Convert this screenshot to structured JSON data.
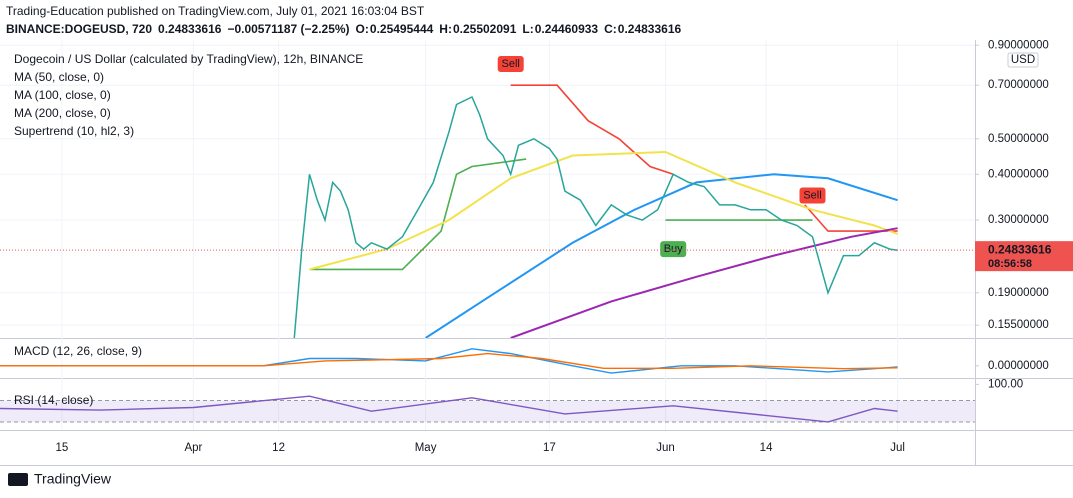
{
  "header": {
    "publisher": "Trading-Education published on TradingView.com, July 01, 2021 16:03:04 BST",
    "symbol": "BINANCE:DOGEUSD, 720",
    "last": 0.24833616,
    "change": "−0.00571187 (−2.25%)",
    "ohlc": [
      {
        "label": "O:",
        "value": 0.25495444
      },
      {
        "label": "H:",
        "value": 0.25502091
      },
      {
        "label": "L:",
        "value": 0.24460933
      },
      {
        "label": "C:",
        "value": 0.24833616
      }
    ]
  },
  "footer": "TradingView",
  "chart_data": [
    {
      "type": "line",
      "title": "Dogecoin / US Dollar (calculated by TradingView), 12h, BINANCE",
      "unit": "USD",
      "log_scale": true,
      "grid": true,
      "xlim": [
        "2021-03-07",
        "2021-07-11"
      ],
      "xticks": [
        {
          "value": "2021-03-15",
          "label": "15"
        },
        {
          "value": "2021-04-01",
          "label": "Apr"
        },
        {
          "value": "2021-04-12",
          "label": "12"
        },
        {
          "value": "2021-05-01",
          "label": "May"
        },
        {
          "value": "2021-05-17",
          "label": "17"
        },
        {
          "value": "2021-06-01",
          "label": "Jun"
        },
        {
          "value": "2021-06-14",
          "label": "14"
        },
        {
          "value": "2021-07-01",
          "label": "Jul"
        }
      ],
      "ylim": [
        0.143,
        0.93
      ],
      "yticks": [
        {
          "value": 0.9,
          "label": "0.90000000"
        },
        {
          "value": 0.7,
          "label": "0.70000000"
        },
        {
          "value": 0.5,
          "label": "0.50000000"
        },
        {
          "value": 0.4,
          "label": "0.40000000"
        },
        {
          "value": 0.3,
          "label": "0.30000000"
        },
        {
          "value": 0.19,
          "label": "0.19000000"
        },
        {
          "value": 0.155,
          "label": "0.15500000"
        }
      ],
      "price": {
        "color": "#26a69a",
        "x": [
          "2021-04-14",
          "2021-04-15",
          "2021-04-16",
          "2021-04-17",
          "2021-04-18",
          "2021-04-19",
          "2021-04-20",
          "2021-04-21",
          "2021-04-22",
          "2021-04-23",
          "2021-04-24",
          "2021-04-26",
          "2021-04-28",
          "2021-04-30",
          "2021-05-02",
          "2021-05-04",
          "2021-05-05",
          "2021-05-07",
          "2021-05-08",
          "2021-05-09",
          "2021-05-11",
          "2021-05-12",
          "2021-05-13",
          "2021-05-15",
          "2021-05-17",
          "2021-05-18",
          "2021-05-19",
          "2021-05-21",
          "2021-05-23",
          "2021-05-25",
          "2021-05-27",
          "2021-05-29",
          "2021-05-31",
          "2021-06-02",
          "2021-06-04",
          "2021-06-06",
          "2021-06-08",
          "2021-06-10",
          "2021-06-12",
          "2021-06-14",
          "2021-06-16",
          "2021-06-18",
          "2021-06-20",
          "2021-06-22",
          "2021-06-24",
          "2021-06-26",
          "2021-06-28",
          "2021-06-30",
          "2021-07-01"
        ],
        "values": [
          0.14,
          0.25,
          0.4,
          0.34,
          0.3,
          0.38,
          0.36,
          0.32,
          0.26,
          0.25,
          0.26,
          0.25,
          0.27,
          0.32,
          0.38,
          0.52,
          0.62,
          0.65,
          0.58,
          0.5,
          0.45,
          0.4,
          0.48,
          0.5,
          0.47,
          0.44,
          0.36,
          0.34,
          0.29,
          0.33,
          0.31,
          0.3,
          0.32,
          0.4,
          0.38,
          0.37,
          0.33,
          0.33,
          0.32,
          0.32,
          0.3,
          0.29,
          0.27,
          0.19,
          0.24,
          0.24,
          0.26,
          0.25,
          0.24833616
        ]
      },
      "series": [
        {
          "name": "MA (50, close, 0)",
          "color": "#2196f3",
          "x": [
            "2021-05-01",
            "2021-05-10",
            "2021-05-20",
            "2021-05-28",
            "2021-06-05",
            "2021-06-15",
            "2021-06-22",
            "2021-07-01"
          ],
          "values": [
            0.143,
            0.19,
            0.26,
            0.32,
            0.38,
            0.4,
            0.39,
            0.34
          ]
        },
        {
          "name": "MA (100, close, 0)",
          "color": "#f2e34c",
          "x": [
            "2021-04-16",
            "2021-04-26",
            "2021-05-04",
            "2021-05-12",
            "2021-05-20",
            "2021-06-01",
            "2021-06-10",
            "2021-06-20",
            "2021-06-28",
            "2021-07-01"
          ],
          "values": [
            0.22,
            0.25,
            0.3,
            0.39,
            0.45,
            0.46,
            0.38,
            0.32,
            0.29,
            0.275
          ]
        },
        {
          "name": "MA (200, close, 0)",
          "color": "#9c27b0",
          "x": [
            "2021-05-12",
            "2021-05-25",
            "2021-06-05",
            "2021-06-15",
            "2021-06-25",
            "2021-07-01"
          ],
          "values": [
            0.143,
            0.18,
            0.21,
            0.24,
            0.27,
            0.285
          ]
        }
      ],
      "supertrend": {
        "name": "Supertrend (10, hl2, 3)",
        "up": {
          "color": "#4caf50",
          "x": [
            "2021-04-16",
            "2021-04-28",
            "2021-05-03",
            "2021-05-05",
            "2021-05-07",
            "2021-05-14",
            "2021-05-15",
            "2021-06-01",
            "2021-06-20"
          ],
          "values": [
            0.22,
            0.22,
            0.28,
            0.4,
            0.42,
            0.44,
            null,
            0.3,
            0.3
          ]
        },
        "down": {
          "color": "#f44336",
          "x": [
            "2021-05-12",
            "2021-05-18",
            "2021-05-22",
            "2021-05-26",
            "2021-05-30",
            "2021-06-02",
            "2021-06-03",
            "2021-06-19",
            "2021-06-22",
            "2021-07-01"
          ],
          "values": [
            0.7,
            0.7,
            0.56,
            0.5,
            0.42,
            0.4,
            null,
            0.33,
            0.28,
            0.28
          ]
        }
      },
      "annotations": [
        {
          "text": "Sell",
          "x": "2021-05-12",
          "y": 0.8,
          "color": "#f44336"
        },
        {
          "text": "Buy",
          "x": "2021-06-02",
          "y": 0.25,
          "color": "#4caf50"
        },
        {
          "text": "Sell",
          "x": "2021-06-20",
          "y": 0.35,
          "color": "#f44336"
        }
      ],
      "countdown": "08:56:58"
    },
    {
      "type": "line",
      "title": "MACD (12, 26, close, 9)",
      "ylim": [
        -0.05,
        0.11
      ],
      "yticks": [
        {
          "value": 0,
          "label": "0.00000000"
        }
      ],
      "series": [
        {
          "color": "#2196f3",
          "x": [
            "2021-03-07",
            "2021-04-10",
            "2021-04-16",
            "2021-04-22",
            "2021-05-01",
            "2021-05-07",
            "2021-05-12",
            "2021-05-20",
            "2021-05-25",
            "2021-06-03",
            "2021-06-10",
            "2021-06-22",
            "2021-07-01"
          ],
          "values": [
            0,
            0,
            0.03,
            0.03,
            0.02,
            0.07,
            0.05,
            0,
            -0.03,
            0,
            0,
            -0.025,
            -0.005
          ]
        },
        {
          "color": "#ff6d00",
          "x": [
            "2021-03-07",
            "2021-04-10",
            "2021-04-18",
            "2021-04-26",
            "2021-05-03",
            "2021-05-09",
            "2021-05-16",
            "2021-05-24",
            "2021-06-02",
            "2021-06-12",
            "2021-06-24",
            "2021-07-01"
          ],
          "values": [
            0,
            0,
            0.02,
            0.025,
            0.03,
            0.05,
            0.03,
            -0.01,
            -0.01,
            0,
            -0.012,
            -0.008
          ]
        }
      ]
    },
    {
      "type": "line",
      "title": "RSI (14, close)",
      "ylim": [
        15,
        110
      ],
      "yticks": [
        {
          "value": 100,
          "label": "100.00"
        }
      ],
      "bands": [
        30,
        70
      ],
      "series": [
        {
          "color": "#7e57c2",
          "x": [
            "2021-03-07",
            "2021-03-20",
            "2021-04-01",
            "2021-04-16",
            "2021-04-24",
            "2021-05-07",
            "2021-05-19",
            "2021-06-02",
            "2021-06-22",
            "2021-06-28",
            "2021-07-01"
          ],
          "values": [
            55,
            52,
            57,
            78,
            50,
            75,
            45,
            60,
            30,
            55,
            50
          ]
        }
      ]
    }
  ]
}
